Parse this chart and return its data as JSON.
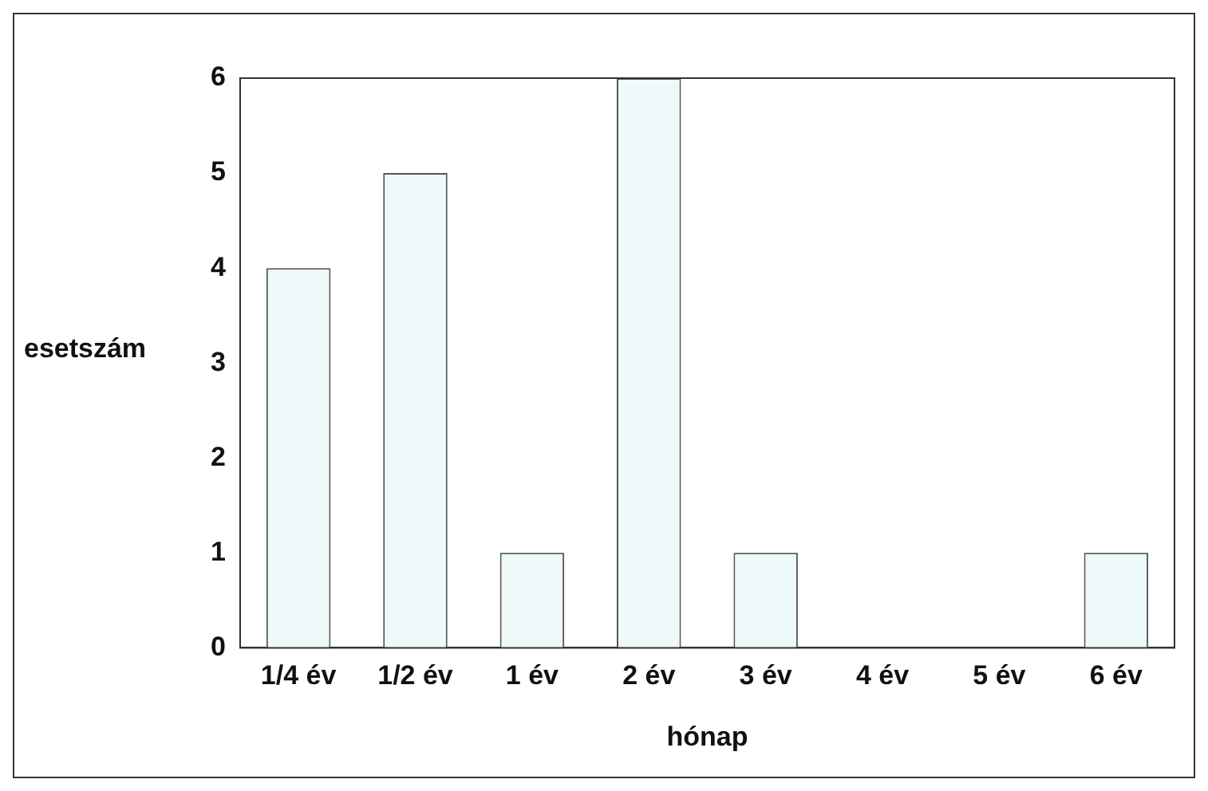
{
  "chart_data": {
    "type": "bar",
    "xlabel": "hónap",
    "ylabel": "esetszám",
    "categories": [
      "1/4 év",
      "1/2 év",
      "1 év",
      "2 év",
      "3 év",
      "4 év",
      "5 év",
      "6 év"
    ],
    "values": [
      4,
      5,
      1,
      6,
      1,
      0,
      0,
      1
    ],
    "color": "#eefafa",
    "ylim": [
      0,
      6
    ],
    "yticks": [
      0,
      1,
      2,
      3,
      4,
      5,
      6
    ],
    "grid": false,
    "legend": false
  }
}
